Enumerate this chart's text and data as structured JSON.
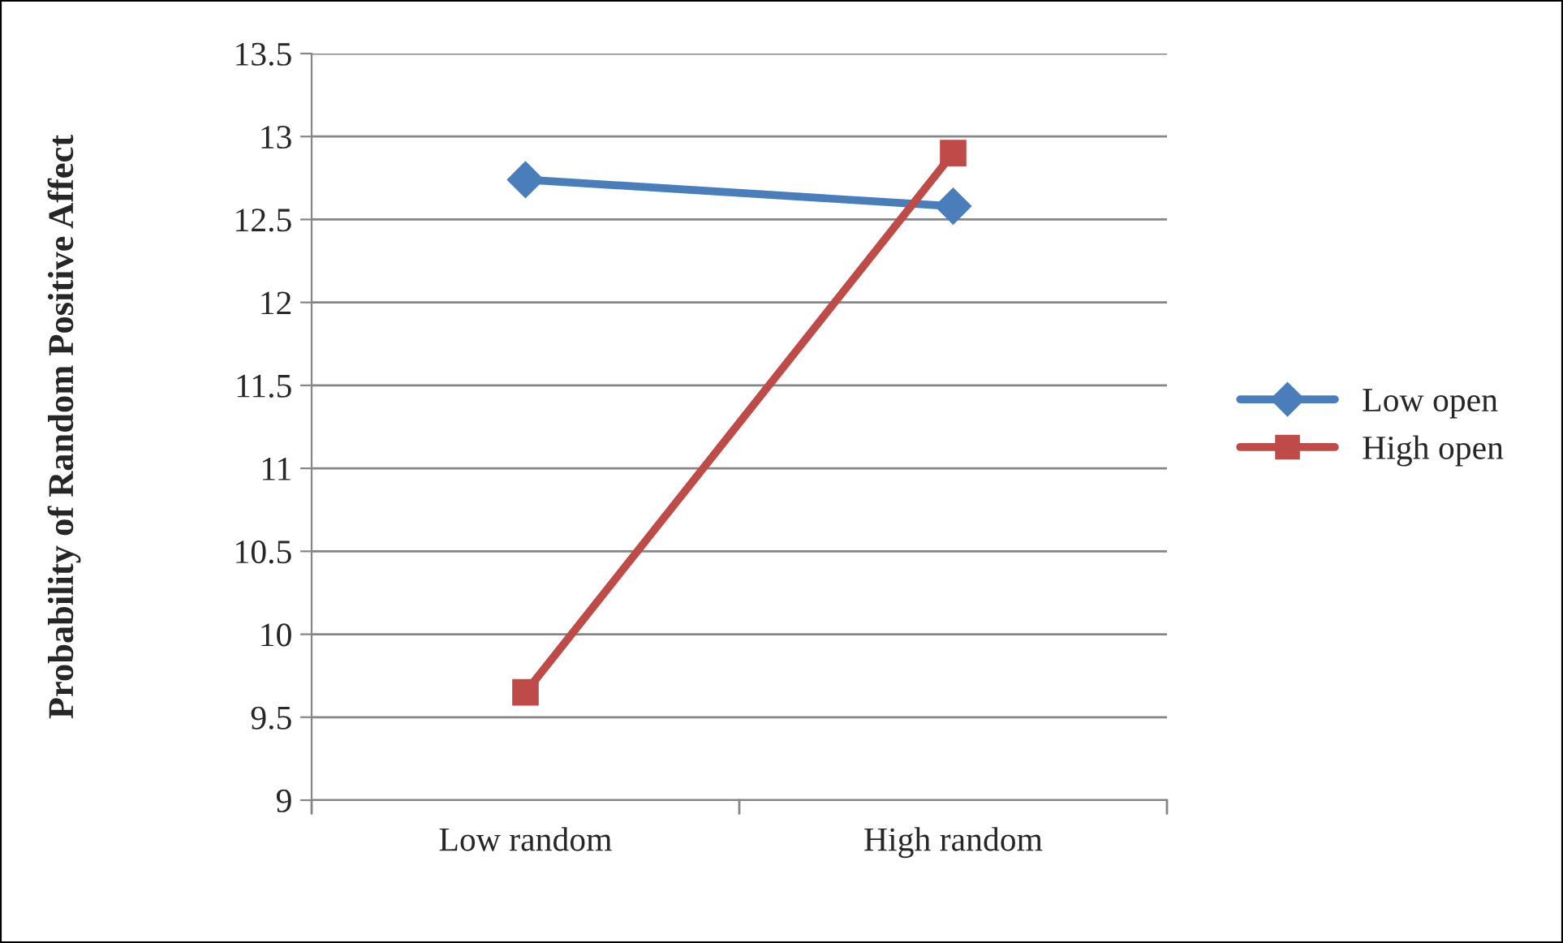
{
  "chart_data": {
    "type": "line",
    "ylabel": "Probability of Random Positive Affect",
    "categories": [
      "Low random",
      "High random"
    ],
    "series": [
      {
        "name": "Low open",
        "color": "#4a7ebb",
        "values": [
          12.74,
          12.58
        ],
        "marker": "diamond"
      },
      {
        "name": "High open",
        "color": "#be4b48",
        "values": [
          9.65,
          12.9
        ],
        "marker": "square"
      }
    ],
    "ylim": [
      9,
      13.5
    ],
    "yticks": [
      9,
      9.5,
      10,
      10.5,
      11,
      11.5,
      12,
      12.5,
      13,
      13.5
    ],
    "grid": "y",
    "legend": "right",
    "line_style": "solid"
  }
}
